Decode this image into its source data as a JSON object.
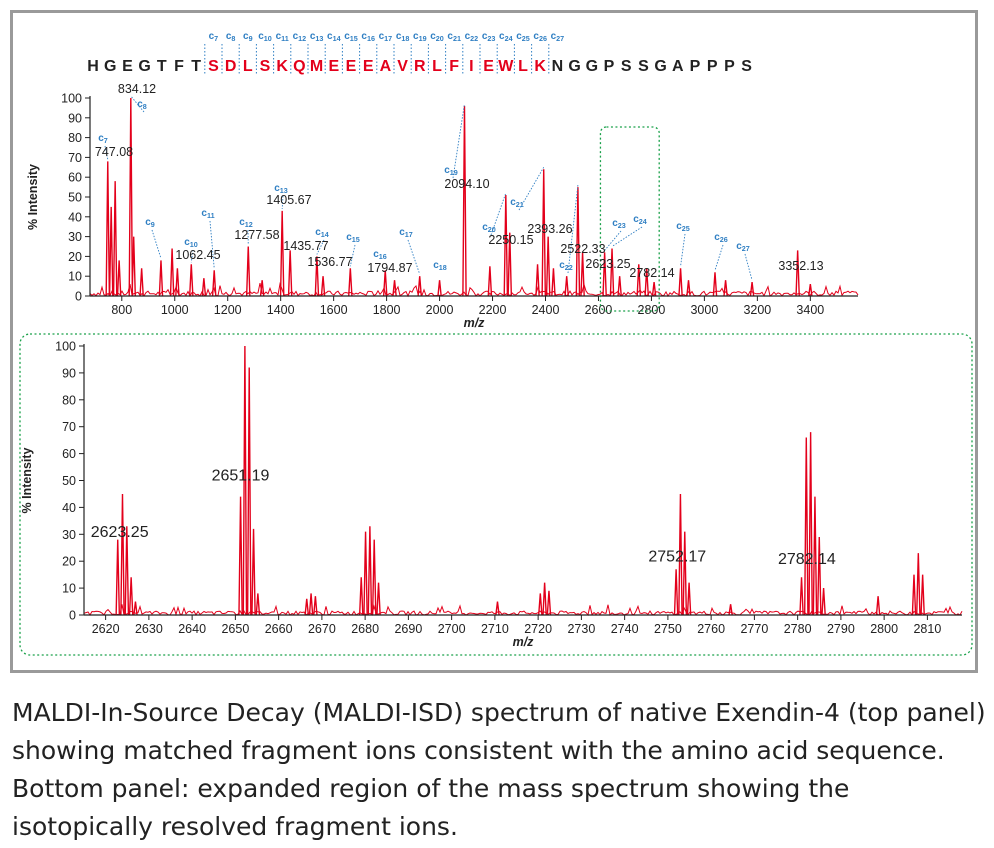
{
  "figure": {
    "sequence": [
      "H",
      "G",
      "E",
      "G",
      "T",
      "F",
      "T",
      "S",
      "D",
      "L",
      "S",
      "K",
      "Q",
      "M",
      "E",
      "E",
      "E",
      "A",
      "V",
      "R",
      "L",
      "F",
      "I",
      "E",
      "W",
      "L",
      "K",
      "N",
      "G",
      "G",
      "P",
      "S",
      "S",
      "G",
      "A",
      "P",
      "P",
      "P",
      "S"
    ],
    "highlight_start": 7,
    "highlight_end": 26,
    "c_ion_labels": [
      "c7",
      "c8",
      "c9",
      "c10",
      "c11",
      "c12",
      "c13",
      "c14",
      "c15",
      "c16",
      "c17",
      "c18",
      "c19",
      "c20",
      "c21",
      "c22",
      "c23",
      "c24",
      "c25",
      "c26",
      "c27"
    ],
    "colors": {
      "spectrum": "#e3001b",
      "ion_label": "#2f7fc3",
      "frame": "#9a9a9a",
      "zoom_box": "#1aa14a",
      "text": "#222222"
    }
  },
  "chart_data": [
    {
      "id": "top",
      "type": "line",
      "xlabel": "m/z",
      "ylabel": "% Intensity",
      "xlim": [
        680,
        3580
      ],
      "ylim": [
        0,
        100
      ],
      "xticks": [
        800,
        1000,
        1200,
        1400,
        1600,
        1800,
        2000,
        2200,
        2400,
        2600,
        2800,
        3000,
        3200,
        3400
      ],
      "yticks": [
        0,
        10,
        20,
        30,
        40,
        50,
        60,
        70,
        80,
        90,
        100
      ],
      "peaks": [
        {
          "x": 747.08,
          "y": 68
        },
        {
          "x": 760,
          "y": 45
        },
        {
          "x": 775,
          "y": 58
        },
        {
          "x": 790,
          "y": 18
        },
        {
          "x": 834.12,
          "y": 100
        },
        {
          "x": 845,
          "y": 30
        },
        {
          "x": 875,
          "y": 14
        },
        {
          "x": 948,
          "y": 18
        },
        {
          "x": 990,
          "y": 24
        },
        {
          "x": 1010,
          "y": 14
        },
        {
          "x": 1062.45,
          "y": 16
        },
        {
          "x": 1110,
          "y": 9
        },
        {
          "x": 1149,
          "y": 13
        },
        {
          "x": 1277.58,
          "y": 25
        },
        {
          "x": 1330,
          "y": 8
        },
        {
          "x": 1405.67,
          "y": 43
        },
        {
          "x": 1435.77,
          "y": 23
        },
        {
          "x": 1536.77,
          "y": 20
        },
        {
          "x": 1560,
          "y": 10
        },
        {
          "x": 1663,
          "y": 14
        },
        {
          "x": 1794.87,
          "y": 13
        },
        {
          "x": 1830,
          "y": 8
        },
        {
          "x": 1925,
          "y": 10
        },
        {
          "x": 2000,
          "y": 8
        },
        {
          "x": 2094.1,
          "y": 96
        },
        {
          "x": 2190,
          "y": 15
        },
        {
          "x": 2250.15,
          "y": 51
        },
        {
          "x": 2265,
          "y": 32
        },
        {
          "x": 2370,
          "y": 16
        },
        {
          "x": 2393.26,
          "y": 64
        },
        {
          "x": 2410,
          "y": 30
        },
        {
          "x": 2430,
          "y": 14
        },
        {
          "x": 2480,
          "y": 10
        },
        {
          "x": 2522.33,
          "y": 55
        },
        {
          "x": 2540,
          "y": 22
        },
        {
          "x": 2623.25,
          "y": 22
        },
        {
          "x": 2651.19,
          "y": 24
        },
        {
          "x": 2680,
          "y": 10
        },
        {
          "x": 2752.17,
          "y": 16
        },
        {
          "x": 2782.14,
          "y": 14
        },
        {
          "x": 2810,
          "y": 7
        },
        {
          "x": 2910,
          "y": 14
        },
        {
          "x": 2940,
          "y": 8
        },
        {
          "x": 3040,
          "y": 12
        },
        {
          "x": 3080,
          "y": 8
        },
        {
          "x": 3180,
          "y": 7
        },
        {
          "x": 3352.13,
          "y": 23
        },
        {
          "x": 3400,
          "y": 6
        }
      ],
      "peak_labels": [
        {
          "text": "747.08",
          "x": 747.08
        },
        {
          "text": "834.12",
          "x": 834.12
        },
        {
          "text": "1062.45",
          "x": 1062.45
        },
        {
          "text": "1277.58",
          "x": 1277.58
        },
        {
          "text": "1405.67",
          "x": 1405.67
        },
        {
          "text": "1435.77",
          "x": 1435.77
        },
        {
          "text": "1536.77",
          "x": 1536.77
        },
        {
          "text": "1794.87",
          "x": 1794.87
        },
        {
          "text": "2094.10",
          "x": 2094.1
        },
        {
          "text": "2250.15",
          "x": 2250.15
        },
        {
          "text": "2393.26",
          "x": 2393.26
        },
        {
          "text": "2522.33",
          "x": 2522.33
        },
        {
          "text": "2623.25",
          "x": 2623.25
        },
        {
          "text": "2782.14",
          "x": 2782.14
        },
        {
          "text": "3352.13",
          "x": 3352.13
        }
      ],
      "ion_annotations": [
        {
          "ion": "c7",
          "x": 747.08
        },
        {
          "ion": "c8",
          "x": 834.12
        },
        {
          "ion": "c9",
          "x": 948
        },
        {
          "ion": "c10",
          "x": 1062.45
        },
        {
          "ion": "c11",
          "x": 1149
        },
        {
          "ion": "c12",
          "x": 1277.58
        },
        {
          "ion": "c13",
          "x": 1405.67
        },
        {
          "ion": "c14",
          "x": 1536.77
        },
        {
          "ion": "c15",
          "x": 1663
        },
        {
          "ion": "c16",
          "x": 1794.87
        },
        {
          "ion": "c17",
          "x": 1925
        },
        {
          "ion": "c18",
          "x": 1995
        },
        {
          "ion": "c19",
          "x": 2094.1
        },
        {
          "ion": "c20",
          "x": 2250.15
        },
        {
          "ion": "c21",
          "x": 2393.26
        },
        {
          "ion": "c22",
          "x": 2522.33
        },
        {
          "ion": "c23",
          "x": 2623.25
        },
        {
          "ion": "c24",
          "x": 2651.19
        },
        {
          "ion": "c25",
          "x": 2910
        },
        {
          "ion": "c26",
          "x": 3040
        },
        {
          "ion": "c27",
          "x": 3180
        }
      ],
      "zoom_region": [
        2615,
        2818
      ]
    },
    {
      "id": "bottom",
      "type": "line",
      "xlabel": "m/z",
      "ylabel": "% Intensity",
      "xlim": [
        2615,
        2818
      ],
      "ylim": [
        0,
        100
      ],
      "xticks": [
        2620,
        2630,
        2640,
        2650,
        2660,
        2670,
        2680,
        2690,
        2700,
        2710,
        2720,
        2730,
        2740,
        2750,
        2760,
        2770,
        2780,
        2790,
        2800,
        2810
      ],
      "yticks": [
        0,
        10,
        20,
        30,
        40,
        50,
        60,
        70,
        80,
        90,
        100
      ],
      "peaks": [
        {
          "x": 2622.8,
          "y": 28
        },
        {
          "x": 2623.9,
          "y": 45
        },
        {
          "x": 2624.9,
          "y": 33
        },
        {
          "x": 2625.9,
          "y": 14
        },
        {
          "x": 2626.9,
          "y": 5
        },
        {
          "x": 2651.2,
          "y": 44
        },
        {
          "x": 2652.2,
          "y": 100
        },
        {
          "x": 2653.2,
          "y": 92
        },
        {
          "x": 2654.2,
          "y": 32
        },
        {
          "x": 2655.2,
          "y": 8
        },
        {
          "x": 2666.5,
          "y": 6
        },
        {
          "x": 2667.5,
          "y": 8
        },
        {
          "x": 2668.5,
          "y": 7
        },
        {
          "x": 2679.1,
          "y": 14
        },
        {
          "x": 2680.1,
          "y": 31
        },
        {
          "x": 2681.1,
          "y": 33
        },
        {
          "x": 2682.1,
          "y": 28
        },
        {
          "x": 2683.1,
          "y": 12
        },
        {
          "x": 2710.6,
          "y": 5
        },
        {
          "x": 2720.5,
          "y": 8
        },
        {
          "x": 2721.5,
          "y": 12
        },
        {
          "x": 2722.5,
          "y": 9
        },
        {
          "x": 2751.9,
          "y": 17
        },
        {
          "x": 2752.9,
          "y": 45
        },
        {
          "x": 2753.9,
          "y": 31
        },
        {
          "x": 2754.9,
          "y": 12
        },
        {
          "x": 2764.5,
          "y": 4
        },
        {
          "x": 2780.9,
          "y": 14
        },
        {
          "x": 2782.0,
          "y": 66
        },
        {
          "x": 2783.0,
          "y": 68
        },
        {
          "x": 2784.0,
          "y": 44
        },
        {
          "x": 2785.0,
          "y": 29
        },
        {
          "x": 2786.0,
          "y": 10
        },
        {
          "x": 2798.6,
          "y": 7
        },
        {
          "x": 2806.9,
          "y": 15
        },
        {
          "x": 2807.9,
          "y": 23
        },
        {
          "x": 2808.9,
          "y": 15
        }
      ],
      "peak_labels": [
        {
          "text": "2623.25",
          "x": 2623.25,
          "y": 26
        },
        {
          "text": "2651.19",
          "x": 2651.19,
          "y": 47
        },
        {
          "text": "2752.17",
          "x": 2752.17,
          "y": 17
        },
        {
          "text": "2782.14",
          "x": 2782.14,
          "y": 16
        }
      ]
    }
  ],
  "caption": "MALDI-In-Source Decay (MALDI-ISD) spectrum of native Exendin-4 (top panel) showing matched fragment ions consistent with the amino acid sequence. Bottom panel: expanded region of the mass spectrum showing the isotopically resolved fragment ions."
}
